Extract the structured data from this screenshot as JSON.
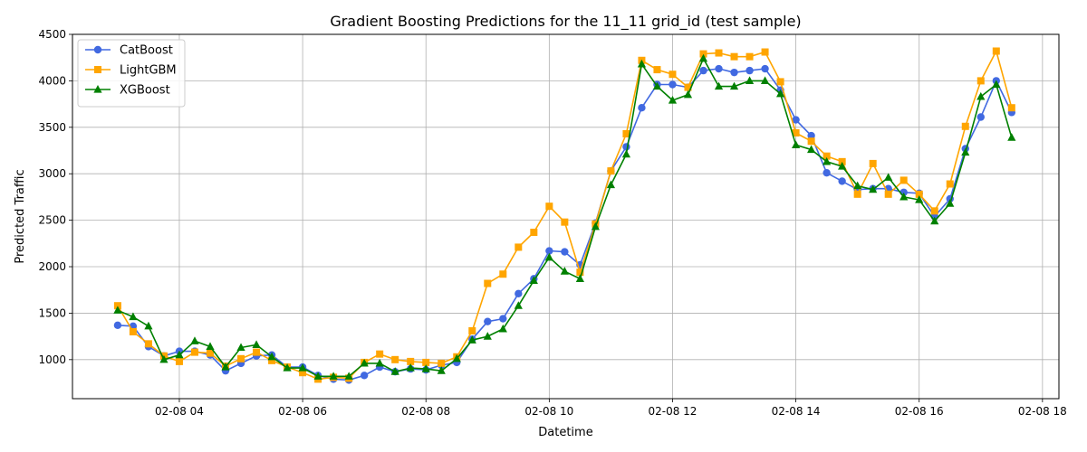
{
  "chart_data": {
    "type": "line",
    "title": "Gradient Boosting Predictions for the 11_11 grid_id (test sample)",
    "xlabel": "Datetime",
    "ylabel": "Predicted Traffic",
    "x_range": [
      "2025-02-08T02:16",
      "2025-02-08T18:16"
    ],
    "ylim": [
      580,
      4500
    ],
    "grid": true,
    "legend": "upper-left",
    "x_ticks": [
      {
        "t": "2025-02-08T04:00",
        "label": "02-08 04"
      },
      {
        "t": "2025-02-08T06:00",
        "label": "02-08 06"
      },
      {
        "t": "2025-02-08T08:00",
        "label": "02-08 08"
      },
      {
        "t": "2025-02-08T10:00",
        "label": "02-08 10"
      },
      {
        "t": "2025-02-08T12:00",
        "label": "02-08 12"
      },
      {
        "t": "2025-02-08T14:00",
        "label": "02-08 14"
      },
      {
        "t": "2025-02-08T16:00",
        "label": "02-08 16"
      },
      {
        "t": "2025-02-08T18:00",
        "label": "02-08 18"
      }
    ],
    "y_ticks": [
      1000,
      1500,
      2000,
      2500,
      3000,
      3500,
      4000,
      4500
    ],
    "x_start": "2025-02-08T03:00",
    "x_step_minutes": 15,
    "series": [
      {
        "name": "CatBoost",
        "color": "#4169E1",
        "marker": "circle",
        "values": [
          1370,
          1360,
          1140,
          1040,
          1090,
          1090,
          1050,
          880,
          960,
          1040,
          1050,
          920,
          920,
          830,
          790,
          780,
          830,
          920,
          870,
          900,
          890,
          940,
          970,
          1220,
          1410,
          1440,
          1710,
          1870,
          2170,
          2160,
          2020,
          2470,
          3030,
          3290,
          3710,
          3960,
          3960,
          3930,
          4110,
          4130,
          4090,
          4110,
          4130,
          3900,
          3580,
          3410,
          3010,
          2920,
          2830,
          2840,
          2840,
          2800,
          2790,
          2540,
          2730,
          3270,
          3610,
          4000,
          3660
        ]
      },
      {
        "name": "LightGBM",
        "color": "#FFA500",
        "marker": "square",
        "values": [
          1580,
          1300,
          1170,
          1040,
          980,
          1080,
          1070,
          930,
          1010,
          1080,
          990,
          920,
          860,
          790,
          810,
          800,
          970,
          1060,
          1000,
          980,
          970,
          960,
          1030,
          1310,
          1820,
          1920,
          2210,
          2370,
          2650,
          2480,
          1940,
          2460,
          3030,
          3430,
          4220,
          4120,
          4070,
          3930,
          4290,
          4300,
          4260,
          4260,
          4310,
          3990,
          3440,
          3350,
          3190,
          3130,
          2780,
          3110,
          2780,
          2930,
          2780,
          2600,
          2890,
          3510,
          4000,
          4320,
          3710
        ]
      },
      {
        "name": "XGBoost",
        "color": "#008000",
        "marker": "triangle",
        "values": [
          1530,
          1460,
          1360,
          1000,
          1050,
          1200,
          1140,
          920,
          1130,
          1160,
          1030,
          910,
          910,
          820,
          820,
          820,
          960,
          960,
          870,
          910,
          900,
          880,
          1010,
          1210,
          1250,
          1330,
          1580,
          1850,
          2100,
          1950,
          1870,
          2430,
          2880,
          3210,
          4180,
          3940,
          3790,
          3850,
          4240,
          3940,
          3940,
          4000,
          4000,
          3860,
          3310,
          3260,
          3130,
          3080,
          2870,
          2830,
          2960,
          2750,
          2720,
          2490,
          2680,
          3230,
          3830,
          3960,
          3390
        ]
      }
    ]
  }
}
